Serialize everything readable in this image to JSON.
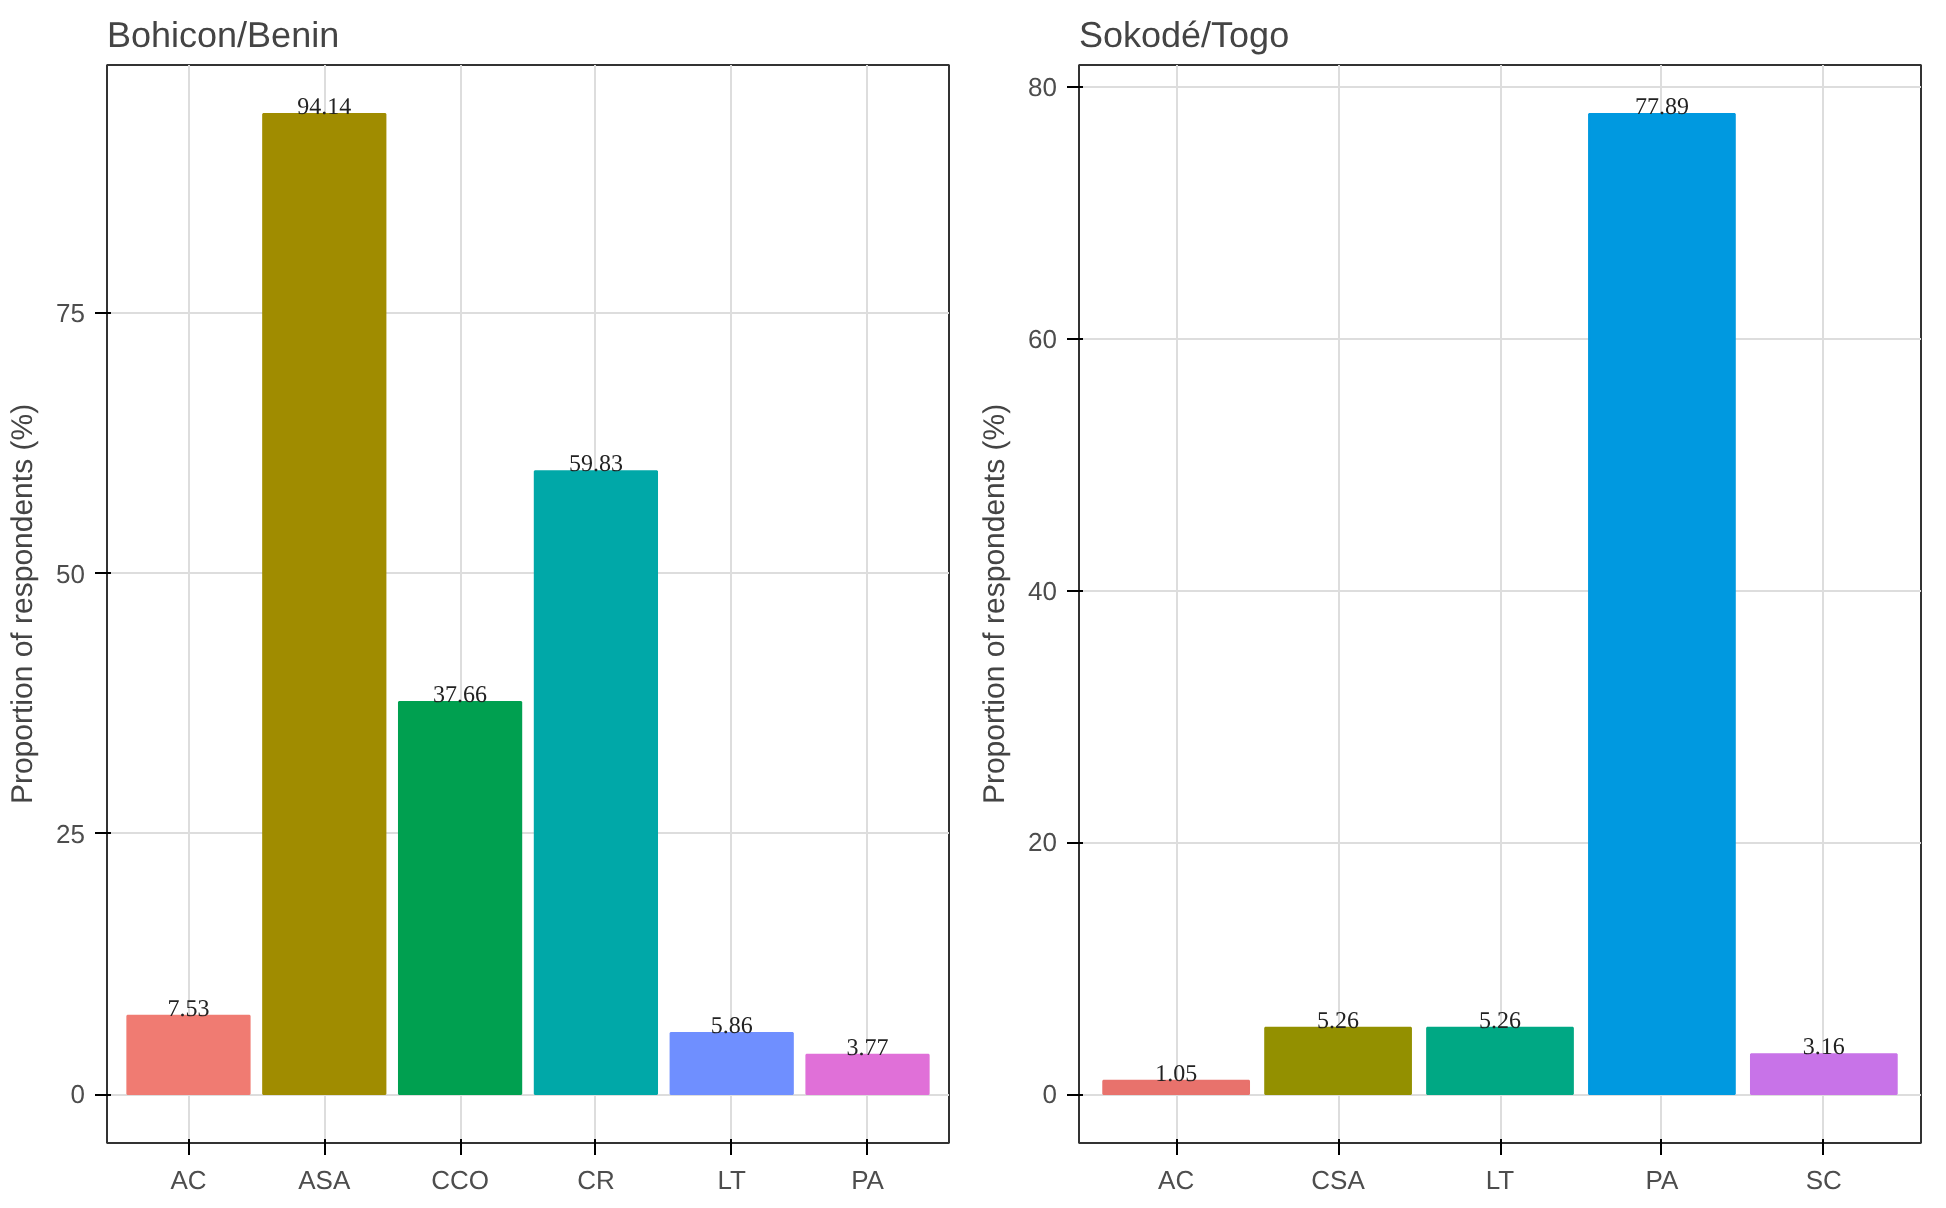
{
  "chart_data": [
    {
      "type": "bar",
      "title": "Bohicon/Benin",
      "ylabel": "Proportion of respondents (%)",
      "categories": [
        "AC",
        "ASA",
        "CCO",
        "CR",
        "LT",
        "PA"
      ],
      "values": [
        7.53,
        94.14,
        37.66,
        59.83,
        5.86,
        3.77
      ],
      "colors": [
        "#f07b72",
        "#a08c00",
        "#00a050",
        "#00a8a8",
        "#6f8fff",
        "#e070d8"
      ],
      "ylim": [
        -4.7,
        98.85
      ],
      "yticks": [
        0,
        25,
        50,
        75
      ],
      "grid": true,
      "data_labels": true
    },
    {
      "type": "bar",
      "title": "Sokodé/Togo",
      "ylabel": "Proportion of respondents (%)",
      "categories": [
        "AC",
        "CSA",
        "LT",
        "PA",
        "SC"
      ],
      "values": [
        1.05,
        5.26,
        5.26,
        77.89,
        3.16
      ],
      "colors": [
        "#e8726c",
        "#939000",
        "#00a884",
        "#0099e0",
        "#c873e8"
      ],
      "ylim": [
        -3.89,
        81.78
      ],
      "yticks": [
        0,
        20,
        40,
        60,
        80
      ],
      "grid": true,
      "data_labels": true
    }
  ]
}
